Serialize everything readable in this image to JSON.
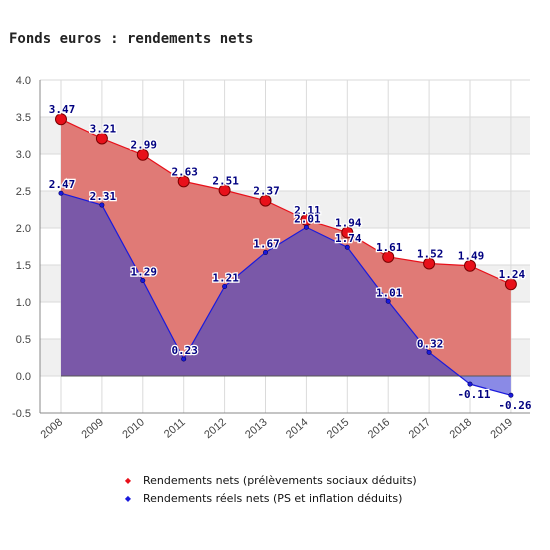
{
  "chart_data": {
    "type": "area",
    "title": "Fonds euros : rendements nets",
    "xlabel": "",
    "ylabel": "",
    "categories": [
      "2008",
      "2009",
      "2010",
      "2011",
      "2012",
      "2013",
      "2014",
      "2015",
      "2016",
      "2017",
      "2018",
      "2019"
    ],
    "ylim": [
      -0.5,
      4.0
    ],
    "yticks": [
      "4.0",
      "3.5",
      "3.0",
      "2.5",
      "2.0",
      "1.5",
      "1.0",
      "0.5",
      "0.0",
      "-0.5"
    ],
    "grid": true,
    "legend_position": "bottom",
    "series": [
      {
        "name": "Rendements nets (prélèvements sociaux déduits)",
        "values": [
          3.47,
          3.21,
          2.99,
          2.63,
          2.51,
          2.37,
          2.11,
          1.94,
          1.61,
          1.52,
          1.49,
          1.24
        ],
        "labels": [
          "3.47",
          "3.21",
          "2.99",
          "2.63",
          "2.51",
          "2.37",
          "2.11",
          "1.94",
          "1.61",
          "1.52",
          "1.49",
          "1.24"
        ],
        "line_color": "#e8101a",
        "fill_color": "#e07a76",
        "marker_color": "#e8101a"
      },
      {
        "name": "Rendements réels nets (PS et inflation déduits)",
        "values": [
          2.47,
          2.31,
          1.29,
          0.23,
          1.21,
          1.67,
          2.01,
          1.74,
          1.01,
          0.32,
          -0.11,
          -0.26
        ],
        "labels": [
          "2.47",
          "2.31",
          "1.29",
          "0.23",
          "1.21",
          "1.67",
          "2.01",
          "1.74",
          "1.01",
          "0.32",
          "-0.11",
          "-0.26"
        ],
        "line_color": "#1a1adc",
        "fill_color": "#7a58a8",
        "fill_color_below_zero": "#8a8ae6",
        "marker_color": "#1a1adc"
      }
    ],
    "data_label_color": "#000080"
  }
}
